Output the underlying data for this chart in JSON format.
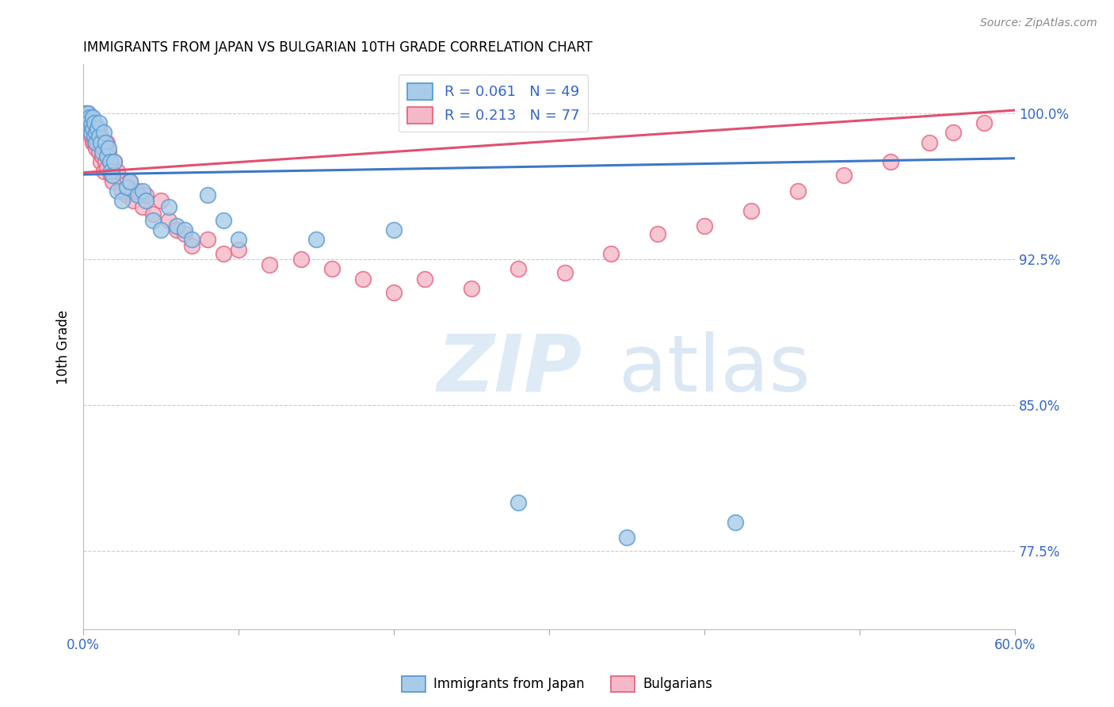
{
  "title": "IMMIGRANTS FROM JAPAN VS BULGARIAN 10TH GRADE CORRELATION CHART",
  "source": "Source: ZipAtlas.com",
  "ylabel": "10th Grade",
  "xlim": [
    0.0,
    0.6
  ],
  "ylim": [
    0.735,
    1.025
  ],
  "xticks": [
    0.0,
    0.1,
    0.2,
    0.3,
    0.4,
    0.5,
    0.6
  ],
  "xticklabels": [
    "0.0%",
    "",
    "",
    "",
    "",
    "",
    "60.0%"
  ],
  "yticks": [
    0.775,
    0.85,
    0.925,
    1.0
  ],
  "yticklabels": [
    "77.5%",
    "85.0%",
    "92.5%",
    "100.0%"
  ],
  "blue_color": "#a8cce8",
  "pink_color": "#f4b8c8",
  "blue_edge_color": "#5b9bd5",
  "pink_edge_color": "#e8637d",
  "blue_line_color": "#3c78c8",
  "pink_line_color": "#e05070",
  "R_blue": 0.061,
  "N_blue": 49,
  "R_pink": 0.213,
  "N_pink": 77,
  "legend_label_blue": "Immigrants from Japan",
  "legend_label_pink": "Bulgarians",
  "watermark_zip": "ZIP",
  "watermark_atlas": "atlas",
  "blue_scatter_x": [
    0.001,
    0.002,
    0.002,
    0.003,
    0.003,
    0.004,
    0.004,
    0.005,
    0.005,
    0.006,
    0.006,
    0.007,
    0.007,
    0.008,
    0.008,
    0.009,
    0.01,
    0.01,
    0.011,
    0.012,
    0.013,
    0.014,
    0.015,
    0.016,
    0.017,
    0.018,
    0.019,
    0.02,
    0.022,
    0.025,
    0.028,
    0.03,
    0.035,
    0.038,
    0.04,
    0.045,
    0.05,
    0.055,
    0.06,
    0.065,
    0.07,
    0.08,
    0.09,
    0.1,
    0.15,
    0.2,
    0.28,
    0.35,
    0.42
  ],
  "blue_scatter_y": [
    0.995,
    1.0,
    0.998,
    0.995,
    1.0,
    0.998,
    0.996,
    0.994,
    0.99,
    0.998,
    0.992,
    0.988,
    0.995,
    0.99,
    0.985,
    0.992,
    0.988,
    0.995,
    0.985,
    0.98,
    0.99,
    0.985,
    0.978,
    0.982,
    0.975,
    0.97,
    0.968,
    0.975,
    0.96,
    0.955,
    0.962,
    0.965,
    0.958,
    0.96,
    0.955,
    0.945,
    0.94,
    0.952,
    0.942,
    0.94,
    0.935,
    0.958,
    0.945,
    0.935,
    0.935,
    0.94,
    0.8,
    0.782,
    0.79
  ],
  "pink_scatter_x": [
    0.001,
    0.001,
    0.002,
    0.002,
    0.002,
    0.003,
    0.003,
    0.003,
    0.004,
    0.004,
    0.004,
    0.005,
    0.005,
    0.005,
    0.006,
    0.006,
    0.006,
    0.007,
    0.007,
    0.007,
    0.008,
    0.008,
    0.008,
    0.009,
    0.009,
    0.01,
    0.01,
    0.011,
    0.011,
    0.012,
    0.012,
    0.013,
    0.013,
    0.014,
    0.015,
    0.015,
    0.016,
    0.017,
    0.018,
    0.019,
    0.02,
    0.022,
    0.025,
    0.028,
    0.03,
    0.032,
    0.035,
    0.038,
    0.04,
    0.045,
    0.05,
    0.055,
    0.06,
    0.065,
    0.07,
    0.08,
    0.09,
    0.1,
    0.12,
    0.14,
    0.16,
    0.18,
    0.2,
    0.22,
    0.25,
    0.28,
    0.31,
    0.34,
    0.37,
    0.4,
    0.43,
    0.46,
    0.49,
    0.52,
    0.545,
    0.56,
    0.58
  ],
  "pink_scatter_y": [
    1.0,
    0.998,
    1.0,
    0.996,
    0.992,
    1.0,
    0.998,
    0.994,
    0.998,
    0.995,
    0.99,
    0.998,
    0.996,
    0.988,
    0.996,
    0.992,
    0.985,
    0.995,
    0.99,
    0.985,
    0.992,
    0.988,
    0.982,
    0.99,
    0.985,
    0.992,
    0.98,
    0.988,
    0.975,
    0.985,
    0.978,
    0.982,
    0.97,
    0.975,
    0.985,
    0.972,
    0.98,
    0.975,
    0.968,
    0.965,
    0.975,
    0.97,
    0.96,
    0.958,
    0.965,
    0.955,
    0.96,
    0.952,
    0.958,
    0.948,
    0.955,
    0.945,
    0.94,
    0.938,
    0.932,
    0.935,
    0.928,
    0.93,
    0.922,
    0.925,
    0.92,
    0.915,
    0.908,
    0.915,
    0.91,
    0.92,
    0.918,
    0.928,
    0.938,
    0.942,
    0.95,
    0.96,
    0.968,
    0.975,
    0.985,
    0.99,
    0.995
  ],
  "blue_trend": [
    0.9685,
    0.9768
  ],
  "pink_trend": [
    0.9695,
    1.0015
  ]
}
